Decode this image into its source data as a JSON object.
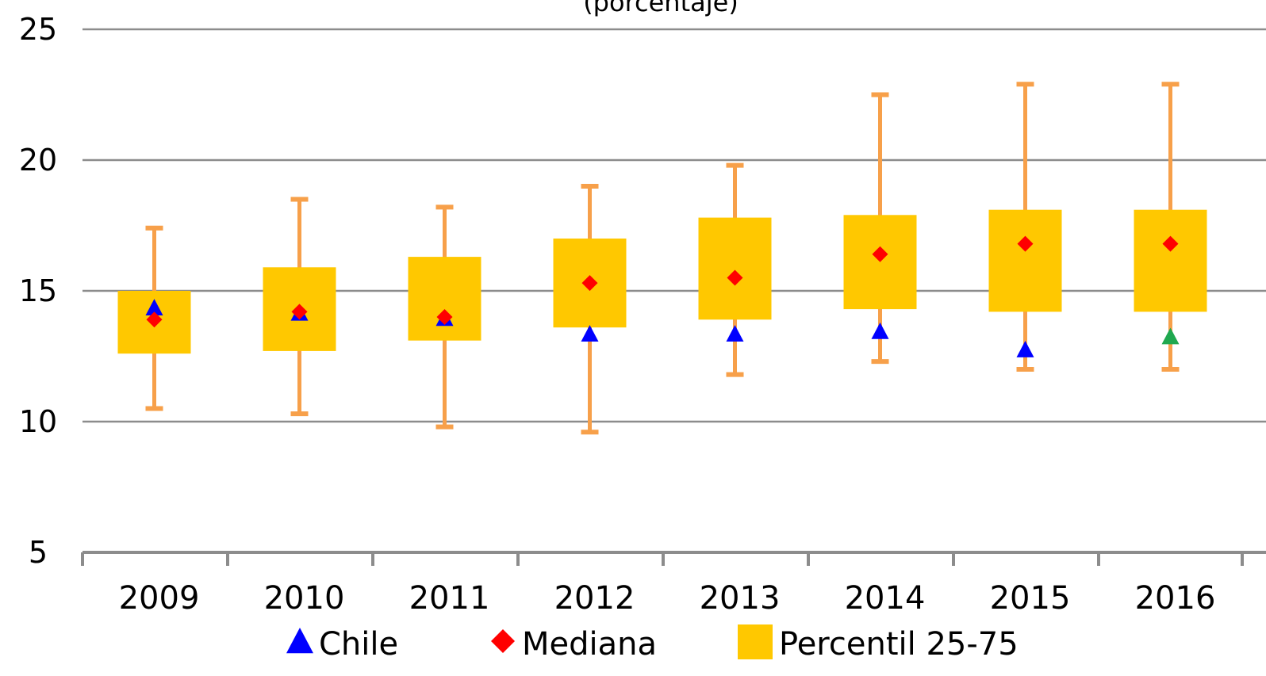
{
  "chart_data": {
    "type": "box",
    "title": "(porcentaje)",
    "categories": [
      "2009",
      "2010",
      "2011",
      "2012",
      "2013",
      "2014",
      "2015",
      "2016"
    ],
    "ylim": [
      5,
      25
    ],
    "yticks": [
      5,
      10,
      15,
      20,
      25
    ],
    "grid": true,
    "series": [
      {
        "name": "Percentil 25-75",
        "color": "#FFC800",
        "whisker_color": "#F7A04A",
        "p25": [
          12.6,
          12.7,
          13.1,
          13.6,
          13.9,
          14.3,
          14.2,
          14.2
        ],
        "p75": [
          15.0,
          15.9,
          16.3,
          17.0,
          17.8,
          17.9,
          18.1,
          18.1
        ],
        "min": [
          10.5,
          10.3,
          9.8,
          9.6,
          11.8,
          12.3,
          12.0,
          12.0
        ],
        "max": [
          17.4,
          18.5,
          18.2,
          19.0,
          19.8,
          22.5,
          22.9,
          22.9
        ]
      },
      {
        "name": "Mediana",
        "color": "#FF0000",
        "values": [
          13.9,
          14.2,
          14.0,
          15.3,
          15.5,
          16.4,
          16.8,
          16.8
        ]
      },
      {
        "name": "Chile",
        "color": "#0000FF",
        "highlight_color": "#1FA84F",
        "values": [
          14.3,
          14.1,
          13.9,
          13.3,
          13.3,
          13.4,
          12.7,
          13.2
        ]
      }
    ],
    "legend": [
      {
        "label": "Chile",
        "marker": "triangle",
        "color": "#0000FF"
      },
      {
        "label": "Mediana",
        "marker": "diamond",
        "color": "#FF0000"
      },
      {
        "label": "Percentil 25-75",
        "marker": "square",
        "color": "#FFC800"
      }
    ],
    "legend_position": "bottom"
  }
}
